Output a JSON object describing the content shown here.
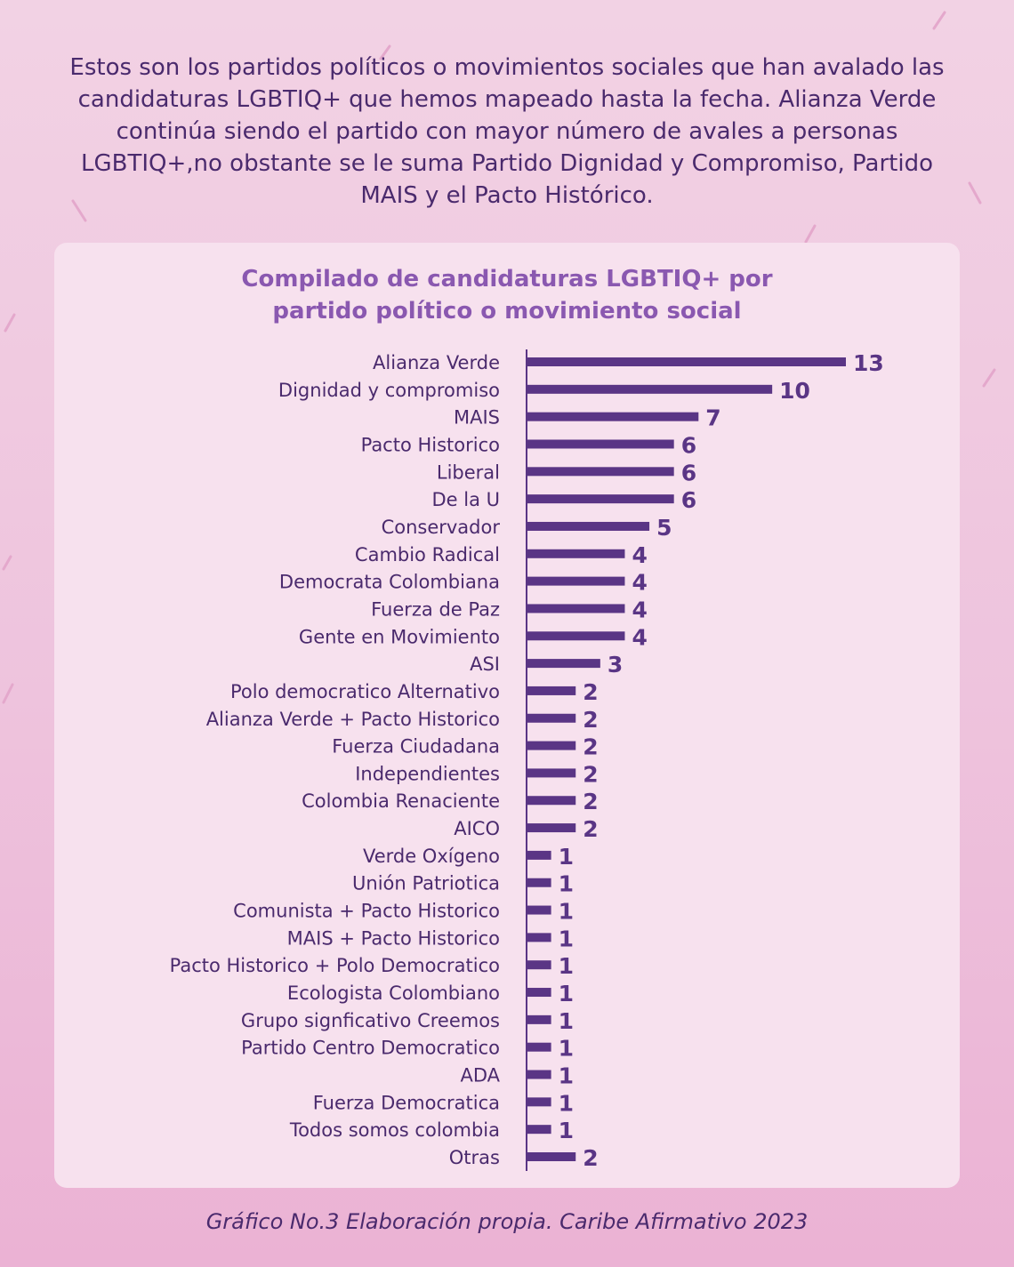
{
  "intro_text": "Estos son los partidos políticos o movimientos sociales que han avalado las candidaturas LGBTIQ+ que hemos mapeado hasta la fecha. Alianza Verde continúa siendo el partido con mayor número de avales a personas LGBTIQ+,no obstante se le suma Partido Dignidad y Compromiso, Partido MAIS y el Pacto Histórico.",
  "caption": "Gráfico No.3 Elaboración propia. Caribe Afirmativo 2023",
  "colors": {
    "bar": "#5a3585",
    "label": "#4a2a6d",
    "title": "#8a58b0",
    "card": "#f7e1ee"
  },
  "chart_data": {
    "type": "bar",
    "orientation": "horizontal",
    "title_line1": "Compilado de candidaturas LGBTIQ+ por",
    "title_line2": "partido político o movimiento social",
    "xlim": [
      0,
      13
    ],
    "grid": false,
    "categories": [
      "Alianza Verde",
      "Dignidad y compromiso",
      "MAIS",
      "Pacto Historico",
      "Liberal",
      "De la U",
      "Conservador",
      "Cambio Radical",
      "Democrata Colombiana",
      "Fuerza de Paz",
      "Gente en Movimiento",
      "ASI",
      "Polo democratico Alternativo",
      "Alianza Verde + Pacto Historico",
      "Fuerza Ciudadana",
      "Independientes",
      "Colombia Renaciente",
      "AICO",
      "Verde Oxígeno",
      "Unión Patriotica",
      "Comunista + Pacto Historico",
      "MAIS + Pacto Historico",
      "Pacto Historico + Polo Democratico",
      "Ecologista Colombiano",
      "Grupo signficativo Creemos",
      "Partido Centro Democratico",
      "ADA",
      "Fuerza Democratica",
      "Todos somos colombia",
      "Otras"
    ],
    "values": [
      13,
      10,
      7,
      6,
      6,
      6,
      5,
      4,
      4,
      4,
      4,
      3,
      2,
      2,
      2,
      2,
      2,
      2,
      1,
      1,
      1,
      1,
      1,
      1,
      1,
      1,
      1,
      1,
      1,
      2
    ]
  }
}
